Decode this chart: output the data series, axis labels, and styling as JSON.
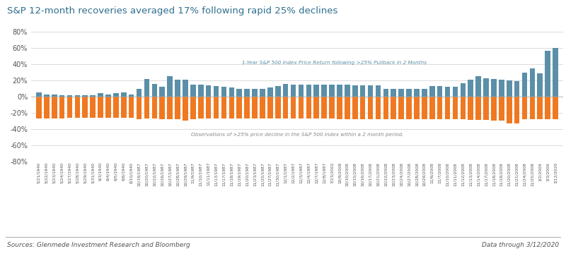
{
  "title": "S&P 12-month recoveries averaged 17% following rapid 25% declines",
  "title_color": "#2e6e8e",
  "bar_color_orange": "#f07820",
  "bar_color_teal": "#5b8fa8",
  "background_color": "#ffffff",
  "grid_color": "#cccccc",
  "annotation_teal": "1-Year S&P 500 Index Price Return following >25% Pullback in 2 Months",
  "annotation_orange": "Observations of >25% price decline in the S&P 500 Index within a 2 month period.",
  "footer_left": "Sources: Glenmede Investment Research and Bloomberg",
  "footer_right": "Data through 3/12/2020",
  "ylim": [
    -80,
    80
  ],
  "yticks": [
    -80,
    -60,
    -40,
    -20,
    0,
    20,
    40,
    60,
    80
  ],
  "labels": [
    "5/21/1940",
    "5/22/1940",
    "5/23/1940",
    "5/24/1940",
    "5/27/1940",
    "5/28/1940",
    "5/29/1940",
    "5/31/1940",
    "6/3/1940",
    "6/4/1940",
    "6/5/1940",
    "6/6/1940",
    "6/10/1940",
    "10/19/1987",
    "10/20/1987",
    "10/22/1987",
    "10/26/1987",
    "10/27/1987",
    "10/28/1987",
    "10/29/1987",
    "11/9/1987",
    "11/10/1987",
    "11/11/1987",
    "11/13/1987",
    "11/17/1987",
    "11/18/1987",
    "11/19/1987",
    "11/20/1987",
    "11/23/1987",
    "11/25/1987",
    "11/27/1987",
    "11/30/1987",
    "12/1/1987",
    "12/2/1987",
    "12/3/1987",
    "12/4/1987",
    "12/7/1987",
    "12/8/1987",
    "7/23/2002",
    "10/9/2008",
    "10/10/2008",
    "10/15/2008",
    "10/16/2008",
    "10/17/2008",
    "10/21/2008",
    "10/22/2008",
    "10/23/2008",
    "10/24/2008",
    "10/27/2008",
    "10/28/2008",
    "10/29/2008",
    "11/6/2008",
    "11/7/2008",
    "11/10/2008",
    "11/11/2008",
    "11/12/2008",
    "11/13/2008",
    "11/14/2008",
    "11/17/2008",
    "11/18/2008",
    "11/19/2008",
    "11/20/2008",
    "11/21/2008",
    "11/24/2008",
    "11/25/2008",
    "3/2/2009",
    "3/3/2009",
    "3/12/2020"
  ],
  "orange_values": [
    -27,
    -27,
    -27,
    -27,
    -26,
    -26,
    -26,
    -26,
    -26,
    -26,
    -26,
    -26,
    -26,
    -28,
    -27,
    -27,
    -28,
    -28,
    -28,
    -30,
    -28,
    -27,
    -27,
    -27,
    -27,
    -27,
    -27,
    -27,
    -27,
    -27,
    -27,
    -27,
    -27,
    -27,
    -27,
    -27,
    -27,
    -27,
    -27,
    -28,
    -28,
    -28,
    -28,
    -28,
    -28,
    -28,
    -28,
    -28,
    -28,
    -28,
    -28,
    -28,
    -28,
    -28,
    -28,
    -28,
    -29,
    -29,
    -29,
    -30,
    -30,
    -33,
    -33,
    -28,
    -28,
    -28,
    -28,
    -28
  ],
  "teal_values": [
    5,
    3,
    3,
    2,
    2,
    2,
    2,
    2,
    4,
    3,
    4,
    5,
    3,
    10,
    22,
    16,
    12,
    25,
    21,
    21,
    15,
    15,
    14,
    13,
    12,
    11,
    10,
    10,
    10,
    10,
    11,
    13,
    16,
    15,
    15,
    15,
    15,
    15,
    15,
    15,
    15,
    14,
    14,
    14,
    14,
    10,
    10,
    10,
    10,
    10,
    10,
    13,
    13,
    12,
    12,
    17,
    21,
    25,
    23,
    22,
    21,
    20,
    19,
    30,
    35,
    29,
    57,
    60
  ]
}
